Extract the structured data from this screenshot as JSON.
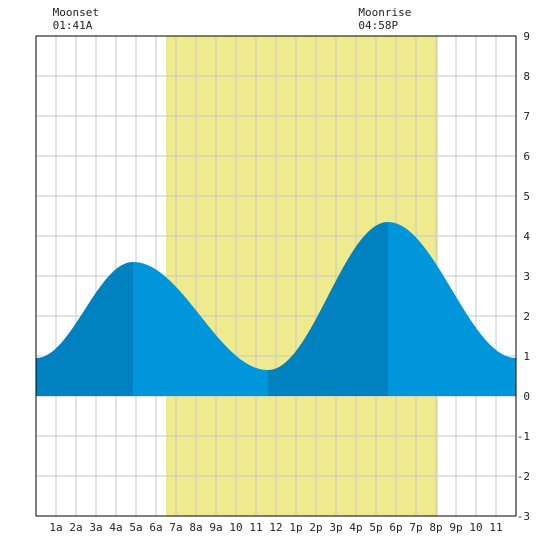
{
  "moon_events": [
    {
      "label": "Moonset",
      "time": "01:41A",
      "x_hour": 1.68
    },
    {
      "label": "Moonrise",
      "time": "04:58P",
      "x_hour": 16.97
    }
  ],
  "chart_data": {
    "type": "area",
    "title": "",
    "xlabel": "",
    "ylabel": "",
    "xlim": [
      0,
      24
    ],
    "ylim": [
      -3,
      9
    ],
    "grid": true,
    "x_tick_labels": [
      "1a",
      "2a",
      "3a",
      "4a",
      "5a",
      "6a",
      "7a",
      "8a",
      "9a",
      "10",
      "11",
      "12",
      "1p",
      "2p",
      "3p",
      "4p",
      "5p",
      "6p",
      "7p",
      "8p",
      "9p",
      "10",
      "11"
    ],
    "y_tick_labels": [
      "-3",
      "-2",
      "-1",
      "0",
      "1",
      "2",
      "3",
      "4",
      "5",
      "6",
      "7",
      "8",
      "9"
    ],
    "daylight": {
      "start": 6.5,
      "end": 20.1
    },
    "tide_extremes": [
      {
        "hour": 0.0,
        "height": 0.95
      },
      {
        "hour": 4.85,
        "height": 3.35
      },
      {
        "hour": 11.6,
        "height": 0.65
      },
      {
        "hour": 17.6,
        "height": 4.35
      },
      {
        "hour": 24.0,
        "height": 0.95
      }
    ],
    "colors": {
      "daylight": "#f0ea8e",
      "flood": "#0081c0",
      "ebb": "#0096dc",
      "grid": "#c8c8c8"
    }
  }
}
